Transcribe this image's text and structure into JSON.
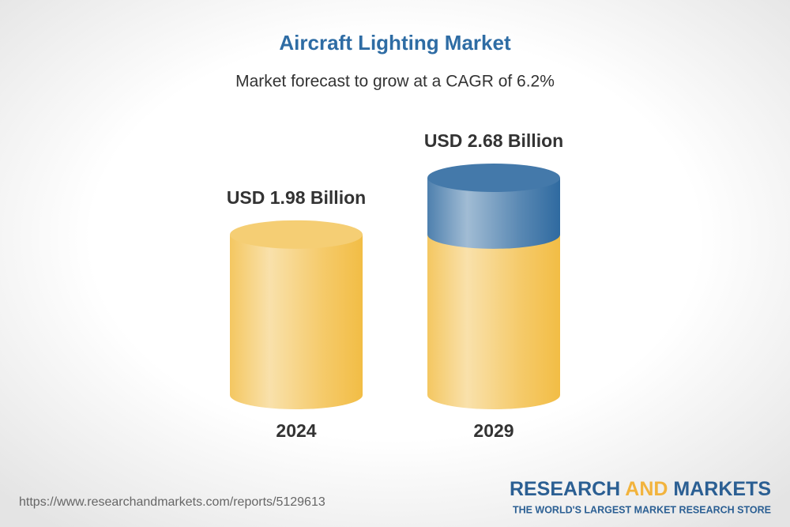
{
  "chart_data": {
    "type": "cylinder",
    "title": "Aircraft Lighting Market",
    "subtitle": "Market forecast to grow at a CAGR of 6.2%",
    "categories": [
      "2024",
      "2029"
    ],
    "values": [
      1.98,
      2.68
    ],
    "value_labels": [
      "USD 1.98 Billion",
      "USD 2.68 Billion"
    ],
    "color": "#f2bd45",
    "growth_color": "#2f6aa0"
  },
  "source": "https://www.researchandmarkets.com/reports/5129613",
  "logo": {
    "words": [
      "RESEARCH",
      "AND",
      "MARKETS"
    ],
    "tagline": "THE WORLD'S LARGEST MARKET RESEARCH STORE"
  }
}
